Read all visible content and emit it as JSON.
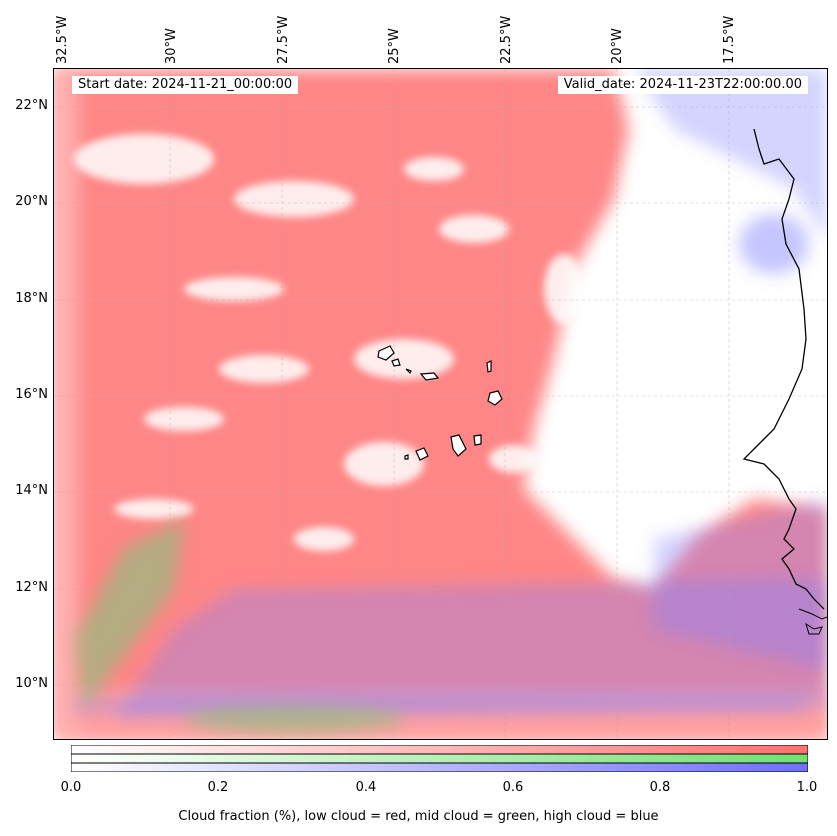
{
  "map": {
    "start_label": "Start date: 2024-11-21_00:00:00",
    "valid_label": "Valid_date: 2024-11-23T22:00:00.00",
    "lon_labels": [
      "32.5°W",
      "30°W",
      "27.5°W",
      "25°W",
      "22.5°W",
      "20°W",
      "17.5°W"
    ],
    "lat_labels": [
      "22°N",
      "20°N",
      "18°N",
      "16°N",
      "14°N",
      "12°N",
      "10°N"
    ],
    "colors": {
      "low": "#ff7f7f",
      "mid": "#80e080",
      "high": "#7f7fff"
    }
  },
  "colorbar": {
    "ticks": [
      "0.0",
      "0.2",
      "0.4",
      "0.6",
      "0.8",
      "1.0"
    ],
    "title": "Cloud fraction (%), low cloud = red, mid cloud = green, high cloud = blue"
  }
}
